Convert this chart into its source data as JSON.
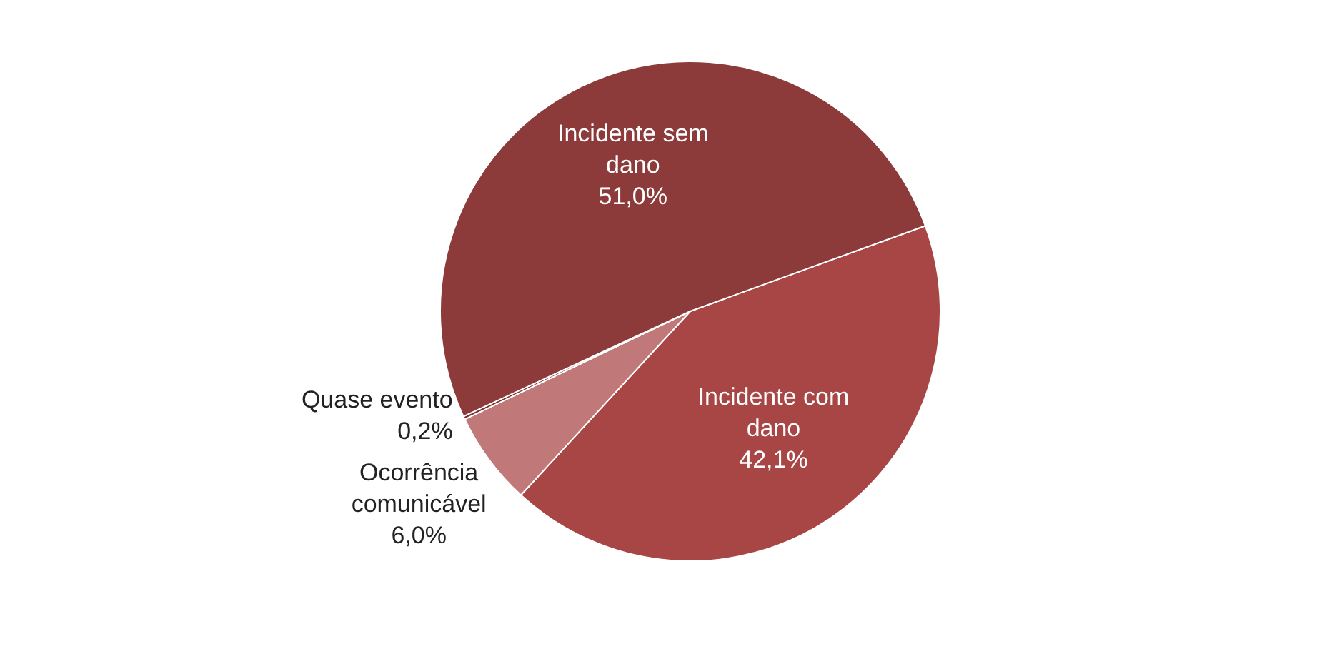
{
  "chart_data": {
    "type": "pie",
    "categories": [
      "Incidente com dano",
      "Ocorrência comunicável",
      "Quase evento",
      "Incidente sem dano"
    ],
    "values": [
      42.1,
      6.0,
      0.2,
      51.0
    ],
    "colors": [
      "#a84545",
      "#c07878",
      "#7a3030",
      "#8c3a3a"
    ],
    "value_labels": [
      "42,1%",
      "6,0%",
      "0,2%",
      "51,0%"
    ]
  }
}
